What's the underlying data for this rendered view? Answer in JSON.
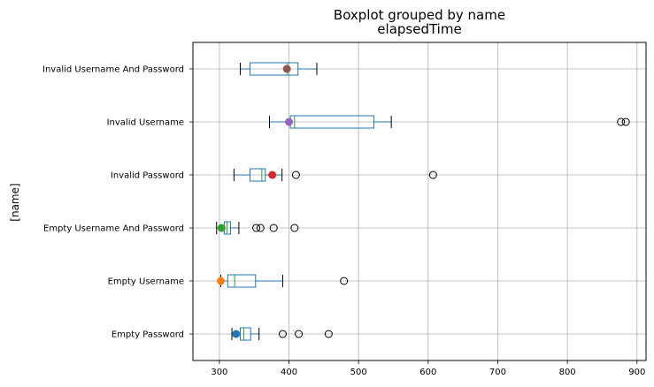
{
  "chart_data": {
    "type": "boxplot",
    "orientation": "horizontal",
    "title": "Boxplot grouped by name",
    "subtitle": "elapsedTime",
    "ylabel": "[name]",
    "xlabel": "",
    "xlim": [
      262,
      913
    ],
    "xticks": [
      300,
      400,
      500,
      600,
      700,
      800,
      900
    ],
    "grid": true,
    "groups": [
      {
        "name": "Empty Password",
        "whisker_low": 318,
        "q1": 330,
        "median": 335,
        "q3": 345,
        "whisker_high": 357,
        "outliers": [
          391,
          414,
          457
        ],
        "mean": 324,
        "mean_color": "#1f77b4"
      },
      {
        "name": "Empty Username",
        "whisker_low": 302,
        "q1": 312,
        "median": 322,
        "q3": 352,
        "whisker_high": 391,
        "outliers": [
          479
        ],
        "mean": 302,
        "mean_color": "#ff7f0e"
      },
      {
        "name": "Empty Username And Password",
        "whisker_low": 296,
        "q1": 307,
        "median": 311,
        "q3": 316,
        "whisker_high": 328,
        "outliers": [
          353,
          359,
          378,
          408
        ],
        "mean": 303,
        "mean_color": "#2ca02c"
      },
      {
        "name": "Invalid Password",
        "whisker_low": 321,
        "q1": 344,
        "median": 361,
        "q3": 366,
        "whisker_high": 390,
        "outliers": [
          410,
          607
        ],
        "mean": 376,
        "mean_color": "#d62728"
      },
      {
        "name": "Invalid Username",
        "whisker_low": 372,
        "q1": 402,
        "median": 408,
        "q3": 522,
        "whisker_high": 547,
        "outliers": [
          877,
          884
        ],
        "mean": 400,
        "mean_color": "#9467bd"
      },
      {
        "name": "Invalid Username And Password",
        "whisker_low": 330,
        "q1": 344,
        "median": 398,
        "q3": 413,
        "whisker_high": 440,
        "outliers": [],
        "mean": 397,
        "mean_color": "#8c564b"
      }
    ]
  }
}
